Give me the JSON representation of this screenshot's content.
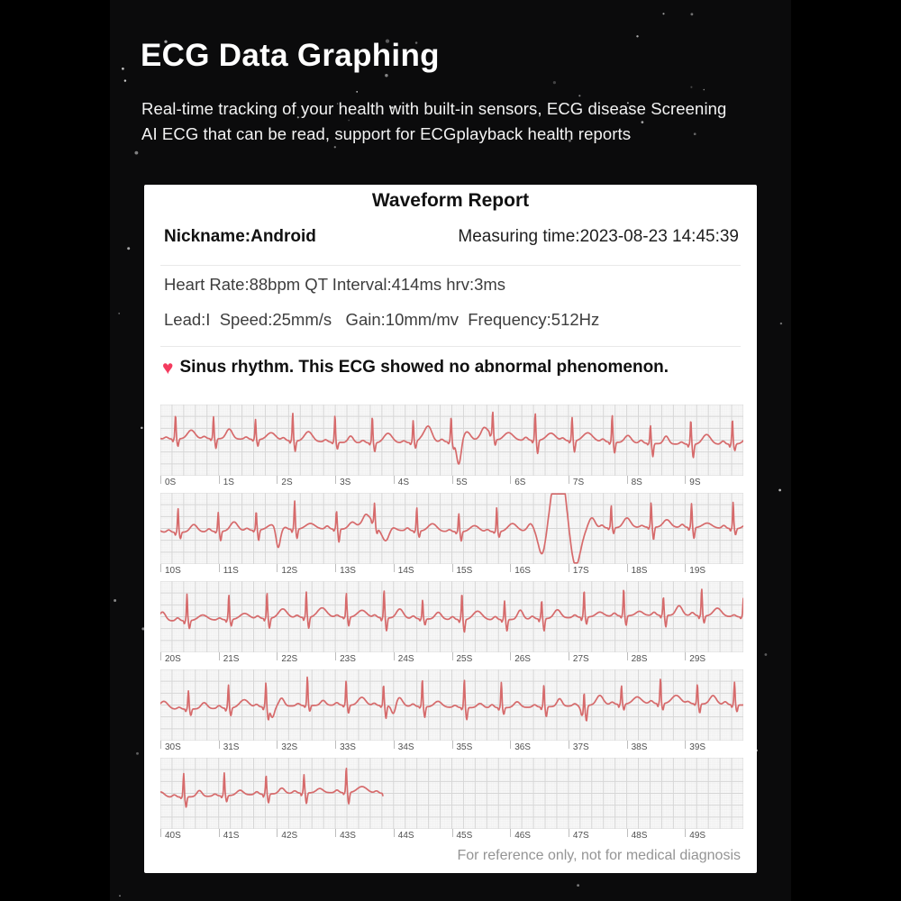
{
  "page": {
    "title": "ECG Data Graphing",
    "subtitle": "Real-time tracking of your health with built-in sensors, ECG disease Screening\nAI ECG that can be read, support for ECGplayback health reports"
  },
  "report": {
    "title": "Waveform Report",
    "nickname": "Nickname:Android",
    "measuring_time": "Measuring time:2023-08-23 14:45:39",
    "vitals_line1": "Heart Rate:88bpm QT Interval:414ms hrv:3ms",
    "vitals_line2": "Lead:I  Speed:25mm/s   Gain:10mm/mv  Frequency:512Hz",
    "diagnosis": "Sinus rhythm. This ECG showed no abnormal phenomenon.",
    "footer": "For reference only, not for medical diagnosis"
  },
  "icons": {
    "heart": "♥"
  },
  "colors": {
    "background": "#000000",
    "panel": "#0b0b0c",
    "card": "#ffffff",
    "wave": "#d66a6b",
    "heart": "#f43b5e",
    "chart_bg": "#f7f7f7",
    "grid_minor": "#ededed",
    "grid_major": "#d6d6d6",
    "tick_text": "#4f4f4f"
  },
  "chart_data": {
    "type": "line",
    "title": "ECG waveform report, 5 strips of 10 seconds each (0S-49S)",
    "heart_rate_bpm": 88,
    "rr_interval_s": 0.682,
    "seconds_per_strip": 10,
    "grid": "on",
    "xlabel": "seconds",
    "ylabel": "",
    "strips": [
      {
        "t_start": 0,
        "t_end": 10,
        "wave_until": 10,
        "seed": 7,
        "ticks": [
          "0S",
          "1S",
          "2S",
          "3S",
          "4S",
          "5S",
          "6S",
          "7S",
          "8S",
          "9S"
        ],
        "events": [
          {
            "t": 4.55,
            "amp": 9,
            "w": 0.12
          },
          {
            "t": 5.12,
            "amp": -26,
            "w": 0.055
          },
          {
            "t": 5.58,
            "amp": 13,
            "w": 0.12
          }
        ]
      },
      {
        "t_start": 10,
        "t_end": 20,
        "wave_until": 20,
        "seed": 19,
        "ticks": [
          "10S",
          "11S",
          "12S",
          "13S",
          "14S",
          "15S",
          "16S",
          "17S",
          "18S",
          "19S"
        ],
        "events": [
          {
            "t": 12.02,
            "amp": -22,
            "w": 0.05
          },
          {
            "t": 13.55,
            "amp": 15,
            "w": 0.13
          },
          {
            "t": 13.88,
            "amp": -16,
            "w": 0.09
          },
          {
            "t": 16.35,
            "amp": 8,
            "w": 0.07
          },
          {
            "t": 16.55,
            "amp": -28,
            "w": 0.09
          },
          {
            "t": 16.83,
            "amp": 80,
            "w": 0.15
          },
          {
            "t": 17.12,
            "amp": -42,
            "w": 0.12
          },
          {
            "t": 17.4,
            "amp": 12,
            "w": 0.08
          }
        ]
      },
      {
        "t_start": 20,
        "t_end": 30,
        "wave_until": 30,
        "seed": 33,
        "ticks": [
          "20S",
          "21S",
          "22S",
          "23S",
          "24S",
          "25S",
          "26S",
          "27S",
          "28S",
          "29S"
        ],
        "events": []
      },
      {
        "t_start": 30,
        "t_end": 40,
        "wave_until": 40,
        "seed": 47,
        "ticks": [
          "30S",
          "31S",
          "32S",
          "33S",
          "34S",
          "35S",
          "36S",
          "37S",
          "38S",
          "39S"
        ],
        "events": [
          {
            "t": 31.92,
            "amp": -12,
            "w": 0.05
          },
          {
            "t": 34.0,
            "amp": -10,
            "w": 0.05
          },
          {
            "t": 37.25,
            "amp": -11,
            "w": 0.05
          }
        ]
      },
      {
        "t_start": 40,
        "t_end": 50,
        "wave_until": 43.82,
        "seed": 55,
        "ticks": [
          "40S",
          "41S",
          "42S",
          "43S",
          "44S",
          "45S",
          "46S",
          "47S",
          "48S",
          "49S"
        ],
        "events": []
      }
    ]
  }
}
